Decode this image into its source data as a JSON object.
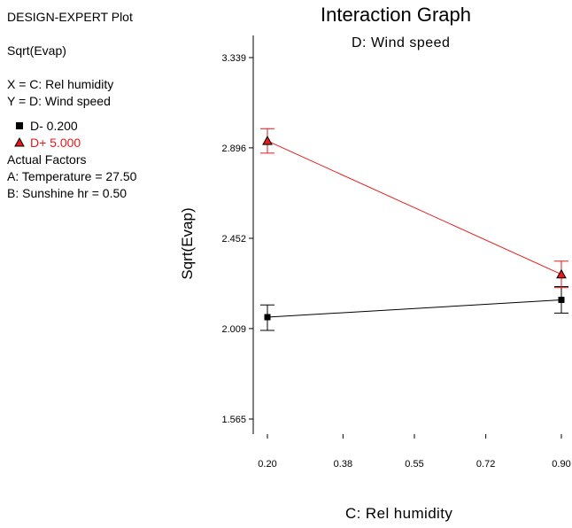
{
  "panel": {
    "plot_type": "DESIGN-EXPERT Plot",
    "response": "Sqrt(Evap)",
    "x_factor": "X = C: Rel humidity",
    "y_factor": "Y = D: Wind speed",
    "legend": [
      {
        "label": "D- 0.200",
        "marker": "square",
        "color": "#000000"
      },
      {
        "label": "D+ 5.000",
        "marker": "triangle",
        "color": "#e8191b"
      }
    ],
    "actual_factors_title": "Actual Factors",
    "factors": [
      "A: Temperature = 27.50",
      "B: Sunshine hr = 0.50"
    ]
  },
  "chart_data": {
    "type": "line",
    "title": "Interaction Graph",
    "subtitle": "D: Wind speed",
    "xlabel": "C: Rel humidity",
    "ylabel": "Sqrt(Evap)",
    "x_ticks": [
      "0.20",
      "0.38",
      "0.55",
      "0.72",
      "0.90"
    ],
    "y_ticks": [
      "3.339",
      "2.896",
      "2.452",
      "2.009",
      "1.565"
    ],
    "xlim": [
      0.2,
      0.9
    ],
    "ylim": [
      1.565,
      3.339
    ],
    "series": [
      {
        "name": "D- 0.200",
        "marker": "square",
        "color": "#000000",
        "x": [
          0.2,
          0.9
        ],
        "y": [
          2.065,
          2.15
        ],
        "lower": [
          2.0,
          2.085
        ],
        "upper": [
          2.125,
          2.215
        ]
      },
      {
        "name": "D+ 5.000",
        "marker": "triangle",
        "color": "#e8191b",
        "x": [
          0.2,
          0.9
        ],
        "y": [
          2.93,
          2.275
        ],
        "lower": [
          2.87,
          2.21
        ],
        "upper": [
          2.99,
          2.34
        ]
      }
    ]
  }
}
